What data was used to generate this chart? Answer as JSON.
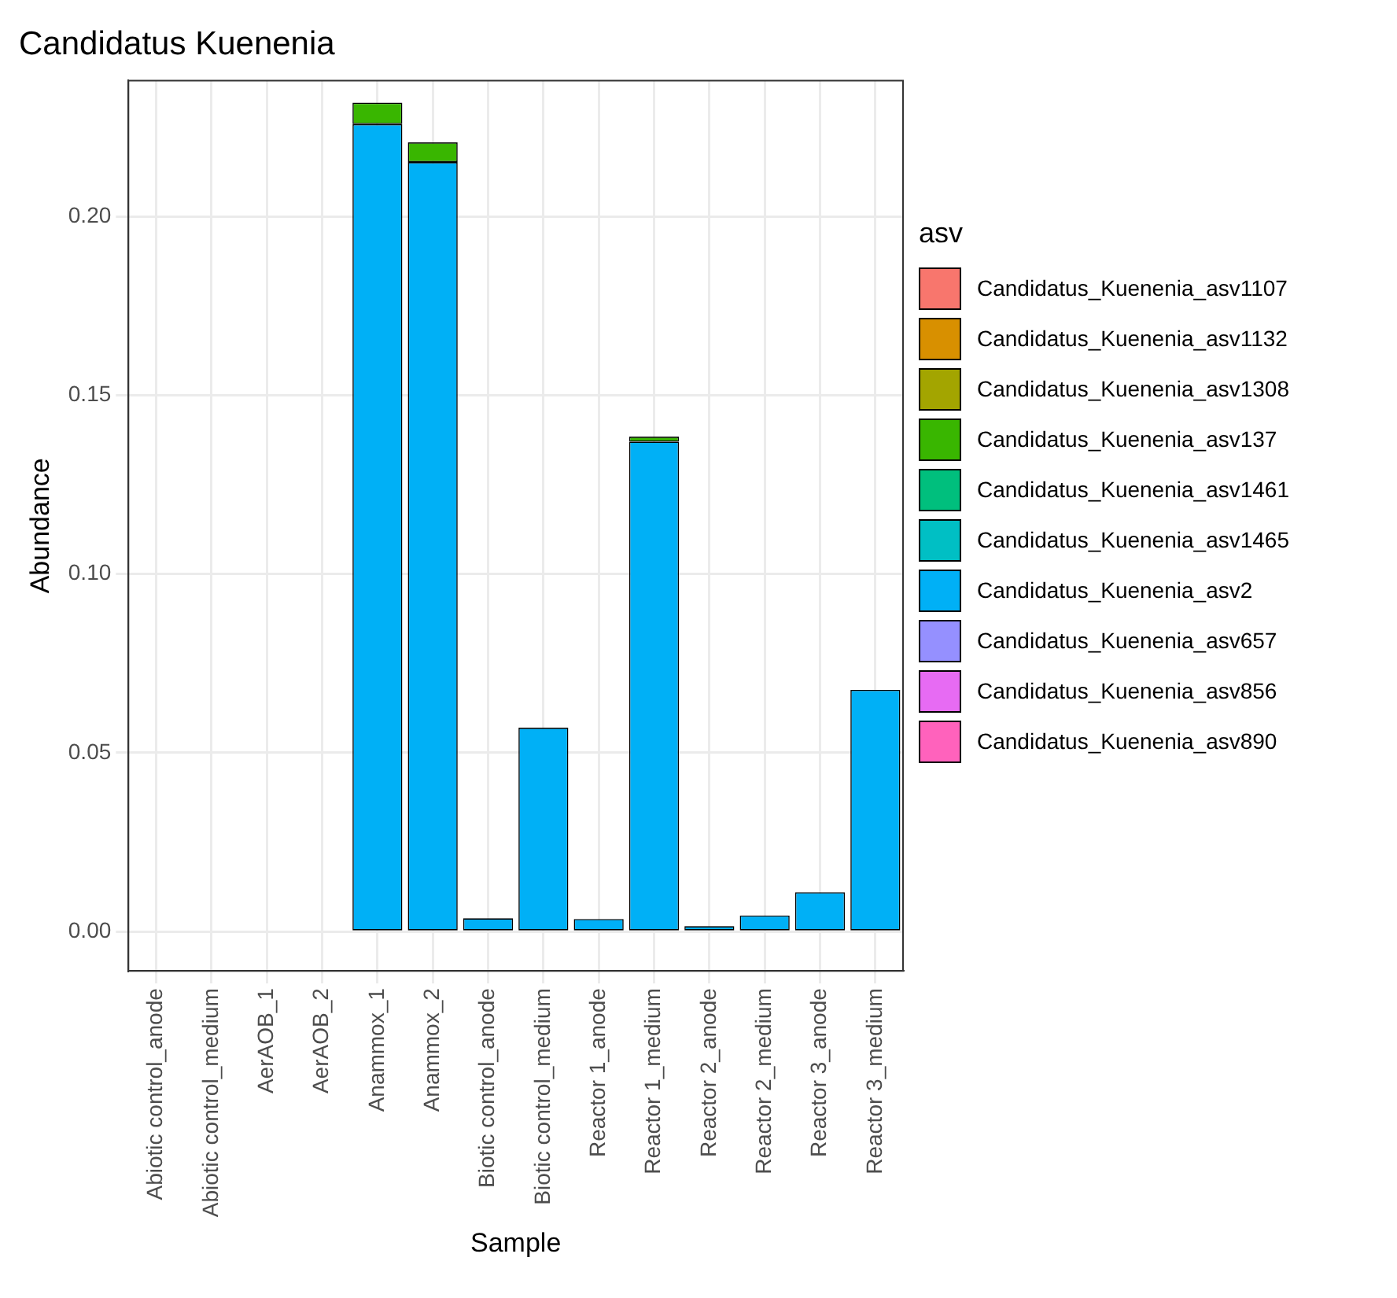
{
  "chart_data": {
    "type": "bar",
    "title": "Candidatus Kuenenia",
    "xlabel": "Sample",
    "ylabel": "Abundance",
    "legend_title": "asv",
    "stacked": true,
    "grid": true,
    "legend": "right",
    "categories": [
      "Abiotic control_anode",
      "Abiotic control_medium",
      "AerAOB_1",
      "AerAOB_2",
      "Anammox_1",
      "Anammox_2",
      "Biotic control_anode",
      "Biotic control_medium",
      "Reactor 1_anode",
      "Reactor 1_medium",
      "Reactor 2_anode",
      "Reactor 2_medium",
      "Reactor 3_anode",
      "Reactor 3_medium"
    ],
    "ylim": [
      -0.011,
      0.238
    ],
    "yticks": [
      {
        "value": 0,
        "label": "0.00"
      },
      {
        "value": 0.05,
        "label": "0.05"
      },
      {
        "value": 0.1,
        "label": "0.10"
      },
      {
        "value": 0.15,
        "label": "0.15"
      },
      {
        "value": 0.2,
        "label": "0.20"
      }
    ],
    "series": [
      {
        "name": "Candidatus_Kuenenia_asv890",
        "color": "#ff62bc",
        "values": [
          null,
          null,
          null,
          null,
          null,
          null,
          null,
          null,
          null,
          null,
          null,
          null,
          null,
          null
        ]
      },
      {
        "name": "Candidatus_Kuenenia_asv856",
        "color": "#e76bf3",
        "values": [
          null,
          null,
          null,
          null,
          null,
          null,
          null,
          null,
          null,
          null,
          null,
          null,
          null,
          null
        ]
      },
      {
        "name": "Candidatus_Kuenenia_asv657",
        "color": "#9590ff",
        "values": [
          null,
          null,
          null,
          null,
          null,
          null,
          null,
          null,
          null,
          null,
          null,
          null,
          null,
          null
        ]
      },
      {
        "name": "Candidatus_Kuenenia_asv2",
        "color": "#00b0f6",
        "values": [
          null,
          null,
          null,
          null,
          0.2258,
          0.2152,
          0.0037,
          0.057,
          0.0035,
          0.137,
          0.0015,
          0.0045,
          0.011,
          0.0676
        ]
      },
      {
        "name": "Candidatus_Kuenenia_asv1465",
        "color": "#00bfc4",
        "values": [
          null,
          null,
          null,
          null,
          null,
          null,
          null,
          null,
          null,
          null,
          null,
          null,
          null,
          null
        ]
      },
      {
        "name": "Candidatus_Kuenenia_asv1461",
        "color": "#00bf7d",
        "values": [
          null,
          null,
          null,
          null,
          null,
          null,
          null,
          null,
          null,
          null,
          null,
          null,
          null,
          null
        ]
      },
      {
        "name": "Candidatus_Kuenenia_asv137",
        "color": "#39b600",
        "values": [
          null,
          null,
          null,
          null,
          0.006,
          0.0055,
          null,
          null,
          null,
          0.0014,
          null,
          null,
          null,
          null
        ]
      },
      {
        "name": "Candidatus_Kuenenia_asv1308",
        "color": "#a3a500",
        "values": [
          null,
          null,
          null,
          null,
          null,
          null,
          null,
          null,
          null,
          null,
          null,
          null,
          null,
          null
        ]
      },
      {
        "name": "Candidatus_Kuenenia_asv1132",
        "color": "#d89000",
        "values": [
          null,
          null,
          null,
          null,
          null,
          null,
          null,
          null,
          null,
          null,
          null,
          null,
          null,
          null
        ]
      },
      {
        "name": "Candidatus_Kuenenia_asv1107",
        "color": "#f8766d",
        "values": [
          null,
          null,
          null,
          null,
          null,
          null,
          null,
          null,
          null,
          null,
          null,
          null,
          null,
          null
        ]
      }
    ]
  }
}
